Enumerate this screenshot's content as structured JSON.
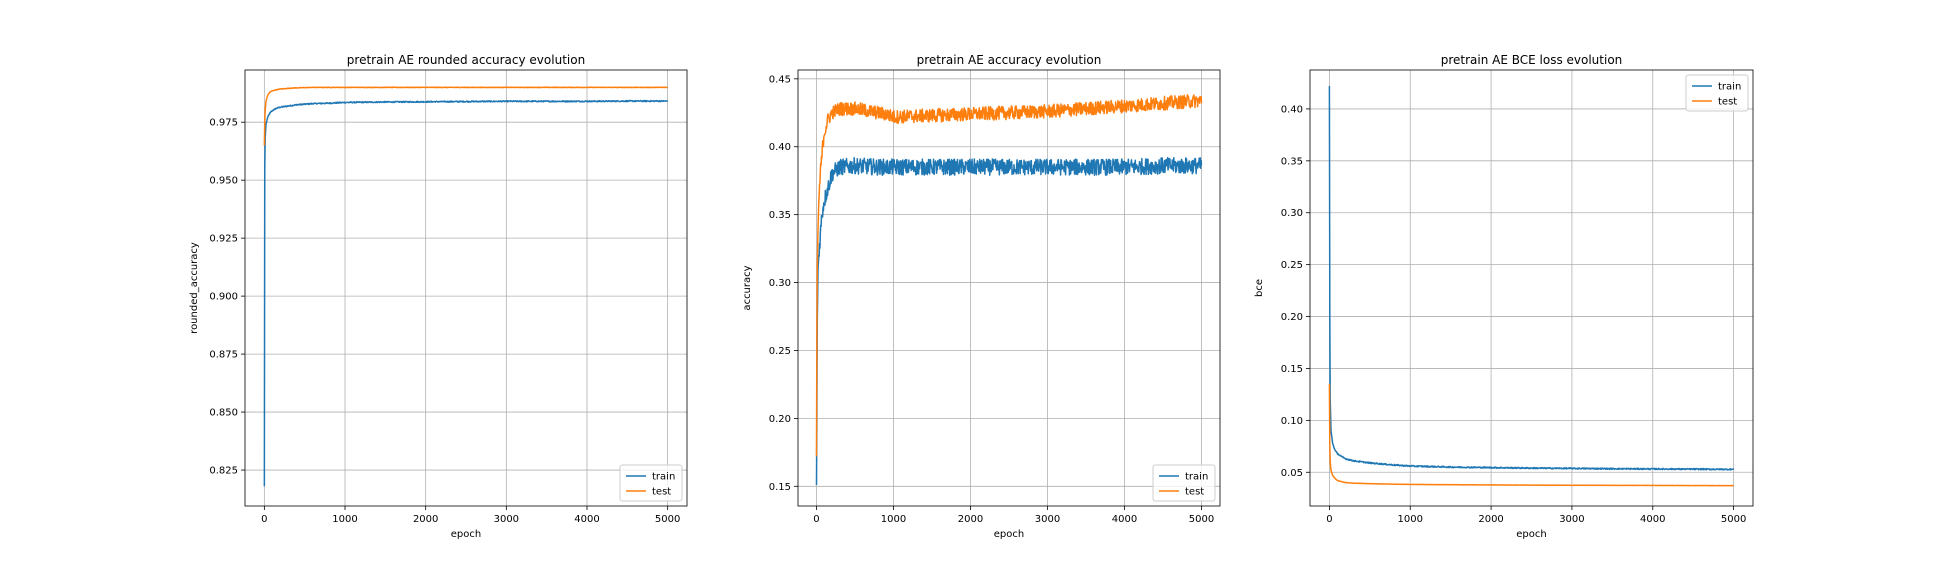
{
  "chart_data": [
    {
      "type": "line",
      "title": "pretrain AE rounded accuracy evolution",
      "xlabel": "epoch",
      "ylabel": "rounded_accuracy",
      "xlim": [
        -240,
        5240
      ],
      "ylim": [
        0.8095,
        0.9975
      ],
      "xticks": [
        0,
        1000,
        2000,
        3000,
        4000,
        5000
      ],
      "yticks": [
        0.825,
        0.85,
        0.875,
        0.9,
        0.925,
        0.95,
        0.975
      ],
      "ytick_labels": [
        "0.825",
        "0.850",
        "0.875",
        "0.900",
        "0.925",
        "0.950",
        "0.975"
      ],
      "grid": true,
      "legend": "lower right",
      "series": [
        {
          "name": "train",
          "color": "#1f77b4",
          "x": [
            0,
            5,
            10,
            20,
            40,
            70,
            100,
            150,
            200,
            300,
            400,
            600,
            800,
            1000,
            1500,
            2000,
            2500,
            3000,
            3500,
            4000,
            4500,
            5000
          ],
          "y": [
            0.818,
            0.955,
            0.968,
            0.974,
            0.977,
            0.979,
            0.98,
            0.981,
            0.9815,
            0.982,
            0.9825,
            0.983,
            0.9832,
            0.9835,
            0.9837,
            0.9838,
            0.9839,
            0.984,
            0.984,
            0.984,
            0.9841,
            0.9841
          ],
          "noise": 0.00025
        },
        {
          "name": "test",
          "color": "#ff7f0e",
          "x": [
            0,
            5,
            10,
            20,
            40,
            70,
            100,
            150,
            200,
            300,
            400,
            600,
            800,
            1000,
            1500,
            2000,
            2500,
            3000,
            3500,
            4000,
            4500,
            5000
          ],
          "y": [
            0.965,
            0.975,
            0.98,
            0.984,
            0.9865,
            0.988,
            0.9885,
            0.989,
            0.9893,
            0.9896,
            0.9898,
            0.99,
            0.99,
            0.99,
            0.99,
            0.99,
            0.99,
            0.99,
            0.99,
            0.99,
            0.99,
            0.99
          ],
          "noise": 0.0001
        }
      ]
    },
    {
      "type": "line",
      "title": "pretrain AE accuracy evolution",
      "xlabel": "epoch",
      "ylabel": "accuracy",
      "xlim": [
        -240,
        5240
      ],
      "ylim": [
        0.1355,
        0.4565
      ],
      "xticks": [
        0,
        1000,
        2000,
        3000,
        4000,
        5000
      ],
      "yticks": [
        0.15,
        0.2,
        0.25,
        0.3,
        0.35,
        0.4,
        0.45
      ],
      "ytick_labels": [
        "0.15",
        "0.20",
        "0.25",
        "0.30",
        "0.35",
        "0.40",
        "0.45"
      ],
      "grid": true,
      "legend": "lower right",
      "series": [
        {
          "name": "train",
          "color": "#1f77b4",
          "x": [
            0,
            5,
            10,
            20,
            30,
            50,
            70,
            100,
            150,
            200,
            300,
            500,
            800,
            1000,
            1500,
            2000,
            2500,
            3000,
            3500,
            4000,
            4500,
            5000
          ],
          "y": [
            0.151,
            0.2,
            0.27,
            0.31,
            0.32,
            0.335,
            0.35,
            0.36,
            0.37,
            0.38,
            0.385,
            0.386,
            0.385,
            0.385,
            0.385,
            0.385,
            0.385,
            0.385,
            0.385,
            0.385,
            0.386,
            0.386
          ],
          "noise": 0.006
        },
        {
          "name": "test",
          "color": "#ff7f0e",
          "x": [
            0,
            5,
            10,
            20,
            30,
            50,
            80,
            100,
            150,
            200,
            300,
            400,
            500,
            700,
            900,
            1000,
            1500,
            2000,
            2500,
            3000,
            3500,
            4000,
            4500,
            5000
          ],
          "y": [
            0.172,
            0.26,
            0.31,
            0.34,
            0.36,
            0.38,
            0.4,
            0.41,
            0.42,
            0.425,
            0.428,
            0.428,
            0.428,
            0.426,
            0.424,
            0.422,
            0.423,
            0.424,
            0.425,
            0.426,
            0.428,
            0.43,
            0.432,
            0.434
          ],
          "noise": 0.005
        }
      ]
    },
    {
      "type": "line",
      "title": "pretrain AE BCE loss evolution",
      "xlabel": "epoch",
      "ylabel": "bce",
      "xlim": [
        -240,
        5240
      ],
      "ylim": [
        0.0175,
        0.4375
      ],
      "xticks": [
        0,
        1000,
        2000,
        3000,
        4000,
        5000
      ],
      "yticks": [
        0.05,
        0.1,
        0.15,
        0.2,
        0.25,
        0.3,
        0.35,
        0.4
      ],
      "ytick_labels": [
        "0.05",
        "0.10",
        "0.15",
        "0.20",
        "0.25",
        "0.30",
        "0.35",
        "0.40"
      ],
      "grid": true,
      "legend": "upper right",
      "series": [
        {
          "name": "train",
          "color": "#1f77b4",
          "x": [
            0,
            5,
            10,
            20,
            40,
            70,
            100,
            150,
            200,
            300,
            500,
            800,
            1000,
            1500,
            2000,
            2500,
            3000,
            3500,
            4000,
            4500,
            5000
          ],
          "y": [
            0.422,
            0.2,
            0.12,
            0.09,
            0.078,
            0.071,
            0.068,
            0.065,
            0.063,
            0.061,
            0.059,
            0.057,
            0.056,
            0.055,
            0.0545,
            0.054,
            0.0537,
            0.0534,
            0.0532,
            0.053,
            0.0528
          ],
          "noise": 0.0006
        },
        {
          "name": "test",
          "color": "#ff7f0e",
          "x": [
            0,
            5,
            10,
            20,
            40,
            70,
            100,
            150,
            200,
            300,
            500,
            800,
            1000,
            1500,
            2000,
            2500,
            3000,
            3500,
            4000,
            4500,
            5000
          ],
          "y": [
            0.135,
            0.075,
            0.06,
            0.052,
            0.047,
            0.044,
            0.042,
            0.041,
            0.04,
            0.0395,
            0.039,
            0.0385,
            0.0383,
            0.038,
            0.0378,
            0.0376,
            0.0375,
            0.0374,
            0.0373,
            0.0372,
            0.0371
          ],
          "noise": 0.0001
        }
      ]
    }
  ]
}
